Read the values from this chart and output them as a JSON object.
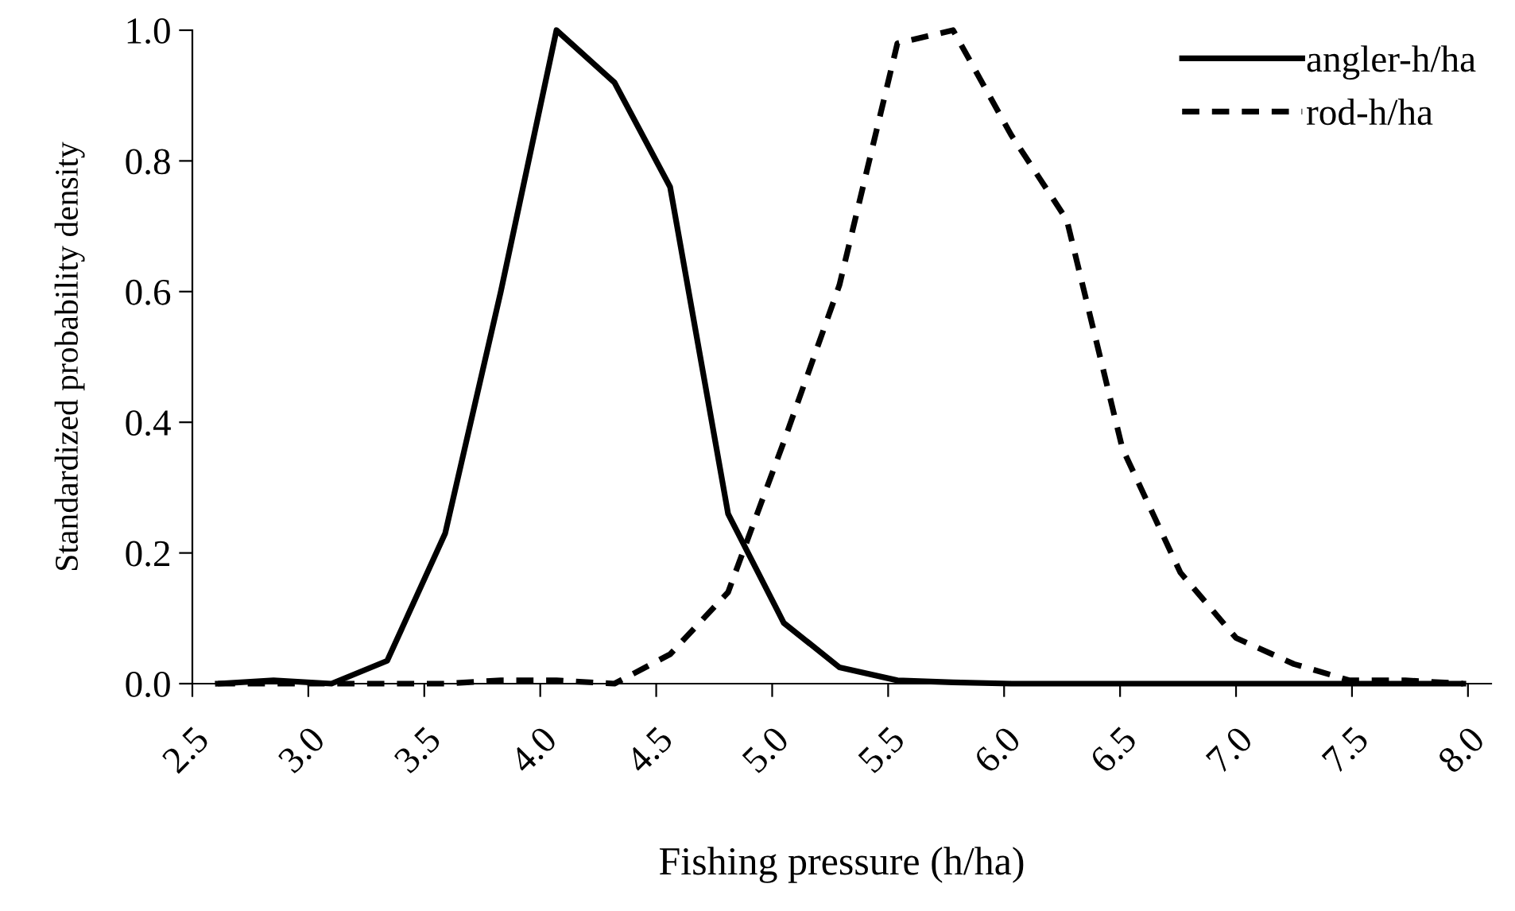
{
  "chart_data": {
    "type": "line",
    "xlabel": "Fishing pressure (h/ha)",
    "ylabel": "Standardized probability density",
    "x": [
      2.61,
      2.85,
      3.1,
      3.34,
      3.59,
      3.83,
      4.07,
      4.32,
      4.56,
      4.81,
      5.05,
      5.29,
      5.54,
      5.78,
      6.03,
      6.27,
      6.51,
      6.76,
      7.0,
      7.25,
      7.49,
      7.73,
      7.98
    ],
    "series": [
      {
        "name": "angler-h/ha",
        "color": "#000000",
        "line_style": "solid",
        "values": [
          0,
          0.005,
          0,
          0.035,
          0.23,
          0.6,
          1.0,
          0.92,
          0.76,
          0.26,
          0.093,
          0.025,
          0.005,
          0.002,
          0,
          0,
          0,
          0,
          0,
          0,
          0,
          0,
          0
        ]
      },
      {
        "name": "rod-h/ha",
        "color": "#000000",
        "line_style": "dashed",
        "values": [
          0,
          0,
          0,
          0,
          0,
          0.005,
          0.005,
          0,
          0.045,
          0.14,
          0.37,
          0.61,
          0.98,
          1.0,
          0.84,
          0.71,
          0.36,
          0.17,
          0.07,
          0.03,
          0.005,
          0.005,
          0
        ]
      }
    ],
    "xlim": [
      2.5,
      8.1
    ],
    "xticks": [
      {
        "value": 2.5,
        "label": "2.5"
      },
      {
        "value": 3.0,
        "label": "3.0"
      },
      {
        "value": 3.5,
        "label": "3.5"
      },
      {
        "value": 4.0,
        "label": "4.0"
      },
      {
        "value": 4.5,
        "label": "4.5"
      },
      {
        "value": 5.0,
        "label": "5.0"
      },
      {
        "value": 5.5,
        "label": "5.5"
      },
      {
        "value": 6.0,
        "label": "6.0"
      },
      {
        "value": 6.5,
        "label": "6.5"
      },
      {
        "value": 7.0,
        "label": "7.0"
      },
      {
        "value": 7.5,
        "label": "7.5"
      },
      {
        "value": 8.0,
        "label": "8.0"
      }
    ],
    "ylim": [
      0,
      1.0
    ],
    "yticks": [
      {
        "value": 0,
        "label": "0.0"
      },
      {
        "value": 0.2,
        "label": "0.2"
      },
      {
        "value": 0.4,
        "label": "0.4"
      },
      {
        "value": 0.6,
        "label": "0.6"
      },
      {
        "value": 0.8,
        "label": "0.8"
      },
      {
        "value": 1.0,
        "label": "1.0"
      }
    ],
    "grid": false,
    "legend": "top right"
  }
}
